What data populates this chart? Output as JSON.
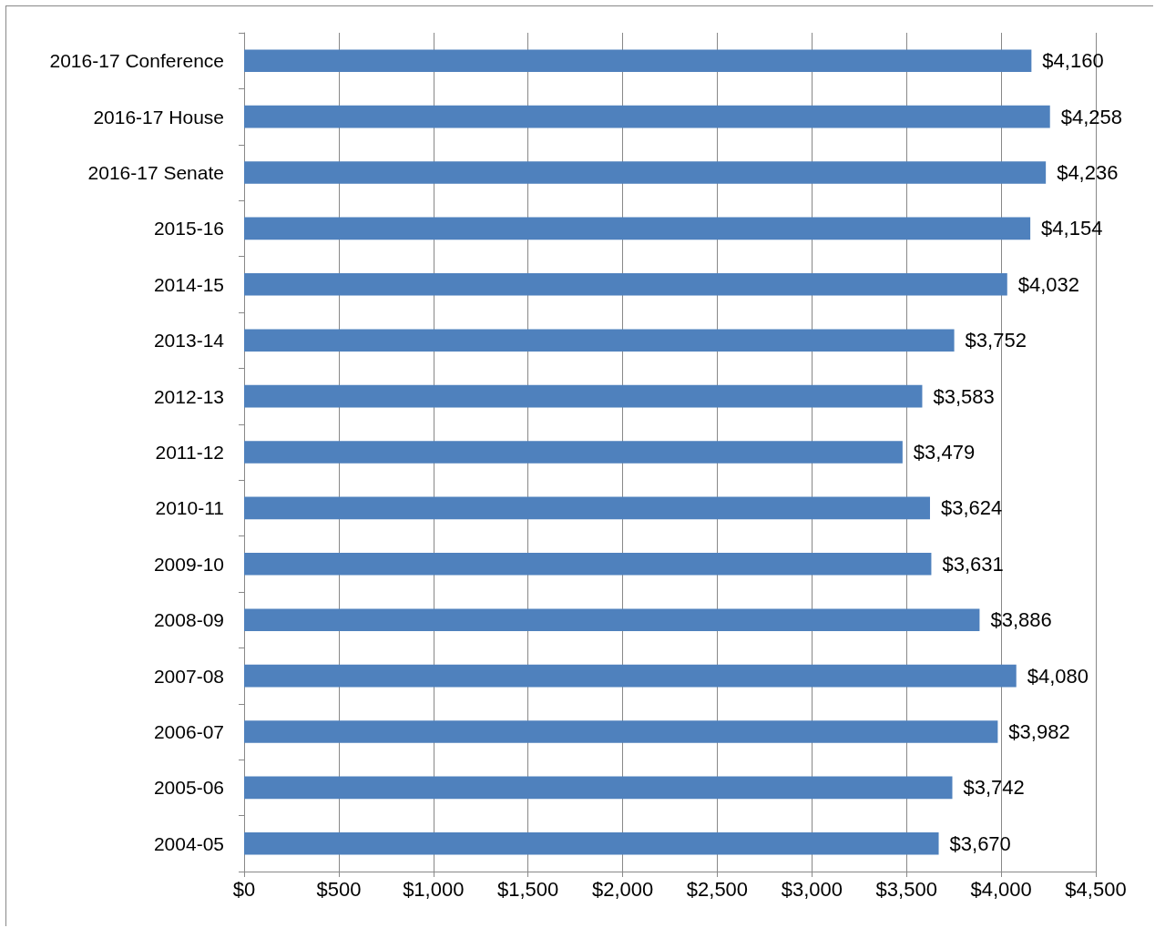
{
  "chart_data": {
    "type": "bar",
    "orientation": "horizontal",
    "categories": [
      "2016-17 Conference",
      "2016-17 House",
      "2016-17 Senate",
      "2015-16",
      "2014-15",
      "2013-14",
      "2012-13",
      "2011-12",
      "2010-11",
      "2009-10",
      "2008-09",
      "2007-08",
      "2006-07",
      "2005-06",
      "2004-05"
    ],
    "values": [
      4160,
      4258,
      4236,
      4154,
      4032,
      3752,
      3583,
      3479,
      3624,
      3631,
      3886,
      4080,
      3982,
      3742,
      3670
    ],
    "value_labels": [
      "$4,160",
      "$4,258",
      "$4,236",
      "$4,154",
      "$4,032",
      "$3,752",
      "$3,583",
      "$3,479",
      "$3,624",
      "$3,631",
      "$3,886",
      "$4,080",
      "$3,982",
      "$3,742",
      "$3,670"
    ],
    "color": "#4f81bd",
    "xlim": [
      0,
      4500
    ],
    "xticks": [
      {
        "value": 0,
        "label": "$0"
      },
      {
        "value": 500,
        "label": "$500"
      },
      {
        "value": 1000,
        "label": "$1,000"
      },
      {
        "value": 1500,
        "label": "$1,500"
      },
      {
        "value": 2000,
        "label": "$2,000"
      },
      {
        "value": 2500,
        "label": "$2,500"
      },
      {
        "value": 3000,
        "label": "$3,000"
      },
      {
        "value": 3500,
        "label": "$3,500"
      },
      {
        "value": 4000,
        "label": "$4,000"
      },
      {
        "value": 4500,
        "label": "$4,500"
      }
    ],
    "grid": "x"
  }
}
